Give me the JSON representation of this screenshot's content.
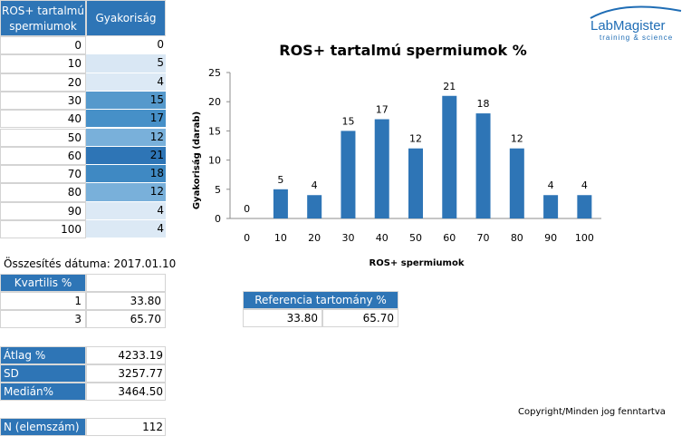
{
  "table": {
    "col1_header_line1": "ROS+ tartalmú",
    "col1_header_line2": "spermiumok",
    "col2_header": "Gyakoriság",
    "rows": [
      {
        "ros": "0",
        "freq": "0",
        "shade": "#ffffff"
      },
      {
        "ros": "10",
        "freq": "5",
        "shade": "#d9e7f4"
      },
      {
        "ros": "20",
        "freq": "4",
        "shade": "#dce9f5"
      },
      {
        "ros": "30",
        "freq": "15",
        "shade": "#5599cc"
      },
      {
        "ros": "40",
        "freq": "17",
        "shade": "#4690c8"
      },
      {
        "ros": "50",
        "freq": "12",
        "shade": "#79b0da"
      },
      {
        "ros": "60",
        "freq": "21",
        "shade": "#2e75b6"
      },
      {
        "ros": "70",
        "freq": "18",
        "shade": "#3f89c3"
      },
      {
        "ros": "80",
        "freq": "12",
        "shade": "#79b0da"
      },
      {
        "ros": "90",
        "freq": "4",
        "shade": "#dce9f5"
      },
      {
        "ros": "100",
        "freq": "4",
        "shade": "#dce9f5"
      }
    ]
  },
  "summary_date": "Összesítés dátuma: 2017.01.10",
  "quartiles": {
    "header": "Kvartilis %",
    "rows": [
      {
        "q": "1",
        "value": "33.80"
      },
      {
        "q": "3",
        "value": "65.70"
      }
    ]
  },
  "reference": {
    "header": "Referencia tartomány %",
    "low": "33.80",
    "high": "65.70"
  },
  "stats": [
    {
      "label": "Átlag %",
      "value": "4233.19"
    },
    {
      "label": "SD",
      "value": "3257.77"
    },
    {
      "label": "Medián%",
      "value": "3464.50"
    }
  ],
  "n": {
    "label": "N (elemszám)",
    "value": "112"
  },
  "logo": {
    "name": "LabMagister",
    "tagline": "training & science"
  },
  "copyright": "Copyright/Minden jog fenntartva",
  "colors": {
    "accent": "#2e75b6",
    "logo_blue": "#1f6db5"
  },
  "chart_data": {
    "type": "bar",
    "title": "ROS+ tartalmú spermiumok %",
    "xlabel": "ROS+ spermiumok",
    "ylabel": "Gyakoriság (darab)",
    "categories": [
      "0",
      "10",
      "20",
      "30",
      "40",
      "50",
      "60",
      "70",
      "80",
      "90",
      "100"
    ],
    "values": [
      0,
      5,
      4,
      15,
      17,
      12,
      21,
      18,
      12,
      4,
      4
    ],
    "ylim": [
      0,
      25
    ],
    "yticks": [
      "0",
      "5",
      "10",
      "15",
      "20",
      "25"
    ],
    "grid": false,
    "legend": "none",
    "bar_color": "#2e75b6"
  }
}
